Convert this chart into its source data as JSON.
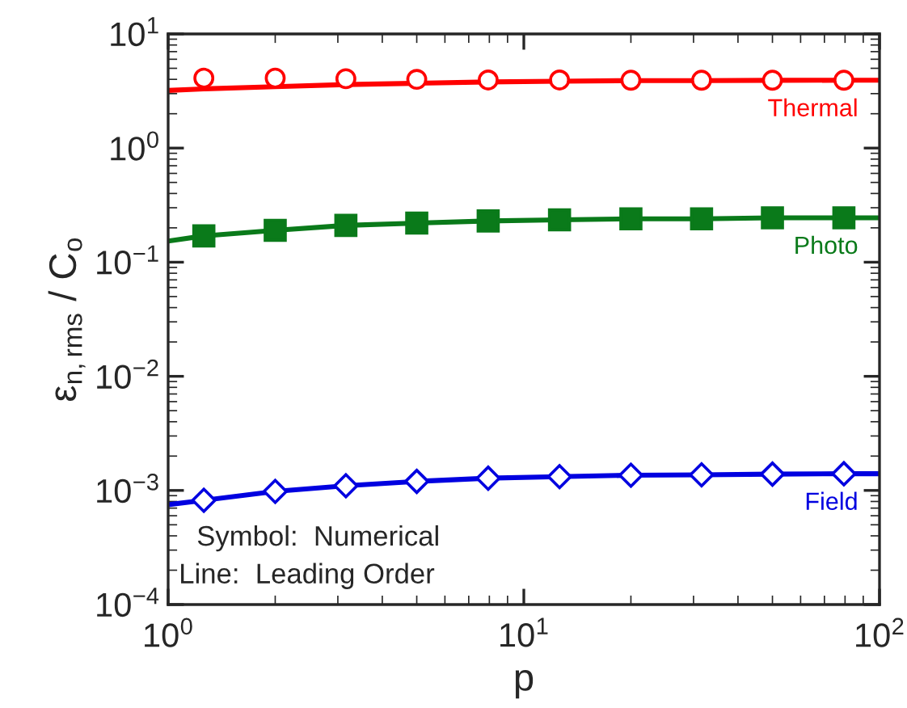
{
  "chart_data": {
    "type": "line",
    "xlabel": "p",
    "ylabel": "ε$_{n,rms}$ / C$_{o}$",
    "log": "xy",
    "grid": false,
    "legend": false,
    "xlim": [
      1,
      100
    ],
    "xticks": [
      {
        "value": 1,
        "label": "10$^{0}$"
      },
      {
        "value": 10,
        "label": "10$^{1}$"
      },
      {
        "value": 100,
        "label": "10$^{2}$"
      }
    ],
    "ylim": [
      0.0001,
      10
    ],
    "yticks": [
      {
        "value": 0.0001,
        "label": "10$^{−4}$"
      },
      {
        "value": 0.001,
        "label": "10$^{−3}$"
      },
      {
        "value": 0.01,
        "label": "10$^{−2}$"
      },
      {
        "value": 0.1,
        "label": "10$^{−1}$"
      },
      {
        "value": 1,
        "label": "10$^{0}$"
      },
      {
        "value": 10,
        "label": "10$^{1}$"
      }
    ],
    "series": [
      {
        "name": "Thermal",
        "color": "#ff0000",
        "line_style": "solid",
        "marker": "none",
        "x": [
          1,
          1.26,
          2,
          3.16,
          5,
          7.94,
          12.6,
          20,
          31.6,
          50,
          79.4,
          100
        ],
        "values": [
          3.2,
          3.3,
          3.45,
          3.6,
          3.7,
          3.8,
          3.85,
          3.9,
          3.9,
          3.92,
          3.93,
          3.93
        ]
      },
      {
        "type": "scatter",
        "color": "#ff0000",
        "marker": "circle",
        "x": [
          1.26,
          2,
          3.16,
          5,
          7.94,
          12.6,
          20,
          31.6,
          50,
          79.4
        ],
        "values": [
          4.1,
          4.1,
          4.05,
          4.0,
          3.95,
          3.95,
          3.93,
          3.93,
          3.93,
          3.93
        ]
      },
      {
        "name": "Photo",
        "color": "#0a7a1a",
        "line_style": "solid",
        "marker": "none",
        "x": [
          1,
          1.26,
          2,
          3.16,
          5,
          7.94,
          12.6,
          20,
          31.6,
          50,
          79.4,
          100
        ],
        "values": [
          0.153,
          0.17,
          0.19,
          0.21,
          0.22,
          0.23,
          0.235,
          0.24,
          0.24,
          0.245,
          0.245,
          0.245
        ]
      },
      {
        "type": "scatter",
        "color": "#0a7a1a",
        "marker": "square",
        "x": [
          1.26,
          2,
          3.16,
          5,
          7.94,
          12.6,
          20,
          31.6,
          50,
          79.4
        ],
        "values": [
          0.17,
          0.19,
          0.21,
          0.22,
          0.23,
          0.235,
          0.24,
          0.24,
          0.245,
          0.245
        ]
      },
      {
        "name": "Field",
        "color": "#0000e0",
        "line_style": "solid",
        "marker": "none",
        "x": [
          1,
          1.26,
          2,
          3.16,
          5,
          7.94,
          12.6,
          20,
          31.6,
          50,
          79.4,
          100
        ],
        "values": [
          0.00075,
          0.00082,
          0.00098,
          0.0011,
          0.0012,
          0.00128,
          0.00132,
          0.00136,
          0.00137,
          0.00139,
          0.0014,
          0.0014
        ]
      },
      {
        "type": "scatter",
        "color": "#0000e0",
        "marker": "diamond",
        "x": [
          1.26,
          2,
          3.16,
          5,
          7.94,
          12.6,
          20,
          31.6,
          50,
          79.4
        ],
        "values": [
          0.00082,
          0.00098,
          0.0011,
          0.0012,
          0.00128,
          0.00132,
          0.00136,
          0.00137,
          0.00139,
          0.0014
        ]
      }
    ],
    "annotations": [
      "Symbol:  Numerical",
      "Line:  Leading Order"
    ]
  }
}
